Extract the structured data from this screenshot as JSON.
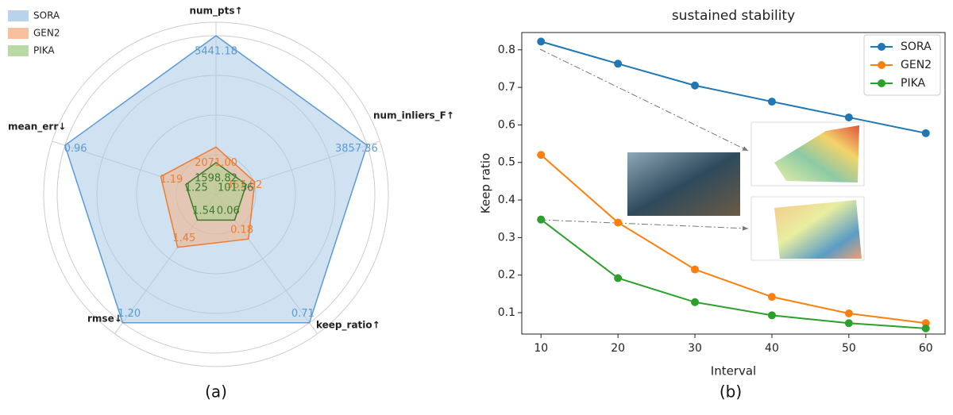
{
  "chart_data": [
    {
      "type": "radar",
      "caption": "(a)",
      "axes": [
        "num_pts↑",
        "num_inliers_F↑",
        "keep_ratio↑",
        "rmse↓",
        "mean_err↓"
      ],
      "series": [
        {
          "name": "SORA",
          "color": "#5b9bd5",
          "fill": "#a9c8e8",
          "label_color": "#5b9bd5",
          "values": [
            5441.18,
            3857.36,
            0.71,
            1.2,
            0.96
          ],
          "value_labels": [
            "5441.18",
            "3857.36",
            "0.71",
            "1.20",
            "0.96"
          ]
        },
        {
          "name": "GEN2",
          "color": "#ed7d31",
          "fill": "#f4b183",
          "label_color": "#ed7d31",
          "values": [
            2071,
            367.82,
            0.18,
            1.45,
            1.19
          ],
          "value_labels": [
            "2071.00",
            "367.82",
            "0.18",
            "1.45",
            "1.19"
          ]
        },
        {
          "name": "PIKA",
          "color": "#3d7a2a",
          "fill": "#a9d18e",
          "label_color": "#3d7a2a",
          "values": [
            1598.82,
            101.36,
            0.06,
            1.54,
            1.25
          ],
          "value_labels": [
            "1598.82",
            "101.36",
            "0.06",
            "1.54",
            "1.25"
          ]
        }
      ]
    },
    {
      "type": "line",
      "caption": "(b)",
      "title": "sustained stability",
      "xlabel": "Interval",
      "ylabel": "Keep ratio",
      "x": [
        10,
        20,
        30,
        40,
        50,
        60
      ],
      "series": [
        {
          "name": "SORA",
          "color": "#1f77b4",
          "values": [
            0.822,
            0.763,
            0.705,
            0.662,
            0.62,
            0.578
          ]
        },
        {
          "name": "GEN2",
          "color": "#ff7f0e",
          "values": [
            0.52,
            0.34,
            0.215,
            0.142,
            0.098,
            0.072
          ]
        },
        {
          "name": "PIKA",
          "color": "#2ca02c",
          "values": [
            0.348,
            0.192,
            0.128,
            0.093,
            0.072,
            0.058
          ]
        }
      ],
      "xlim": [
        7.5,
        62.5
      ],
      "ylim": [
        0.043,
        0.846
      ],
      "xticks": [
        10,
        20,
        30,
        40,
        50,
        60
      ],
      "yticks": [
        0.1,
        0.2,
        0.3,
        0.4,
        0.5,
        0.6,
        0.7,
        0.8
      ],
      "legend": "upper right"
    }
  ]
}
